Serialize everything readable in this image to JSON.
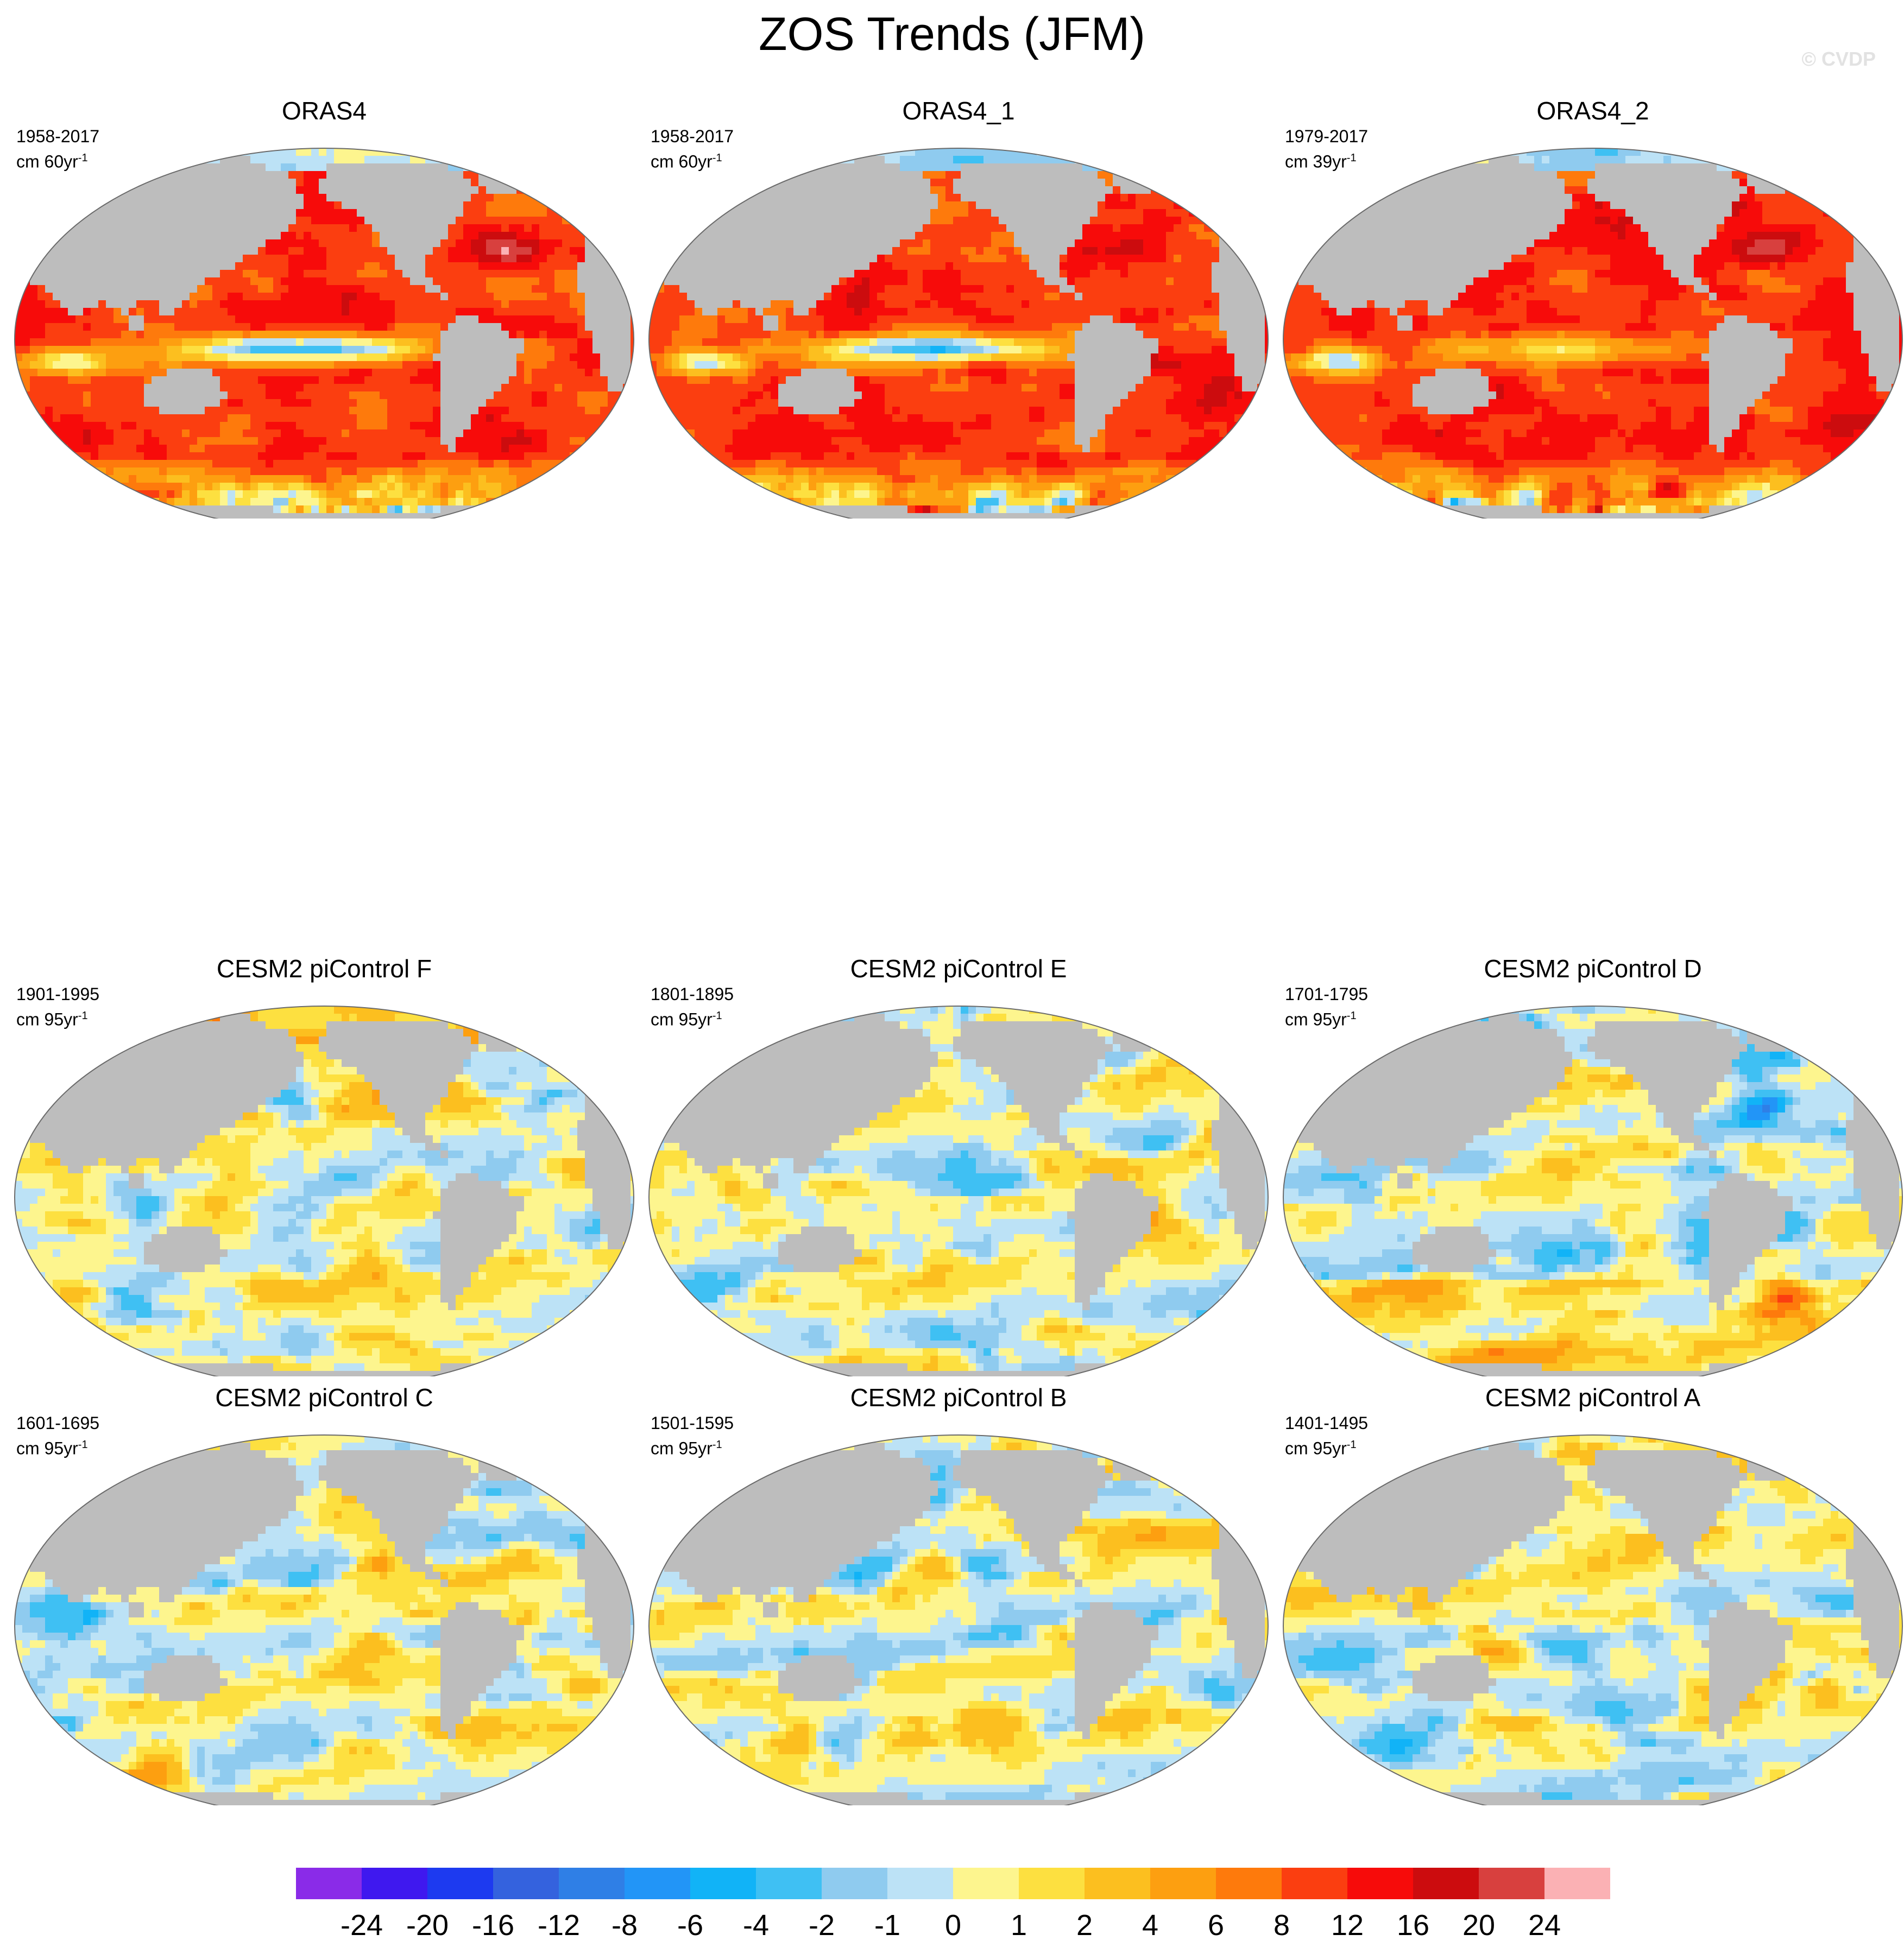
{
  "title": "ZOS Trends (JFM)",
  "watermark": "© CVDP",
  "panels": [
    {
      "title": "ORAS4",
      "period": "1958-2017",
      "units_prefix": "cm 60yr",
      "units_sup": "-1",
      "regime": "obs1"
    },
    {
      "title": "ORAS4_1",
      "period": "1958-2017",
      "units_prefix": "cm 60yr",
      "units_sup": "-1",
      "regime": "obs1"
    },
    {
      "title": "ORAS4_2",
      "period": "1979-2017",
      "units_prefix": "cm 39yr",
      "units_sup": "-1",
      "regime": "obs2"
    },
    {
      "title": "CESM2 piControl F",
      "period": "1901-1995",
      "units_prefix": "cm 95yr",
      "units_sup": "-1",
      "regime": "ctrlF"
    },
    {
      "title": "CESM2 piControl E",
      "period": "1801-1895",
      "units_prefix": "cm 95yr",
      "units_sup": "-1",
      "regime": "ctrlE"
    },
    {
      "title": "CESM2 piControl D",
      "period": "1701-1795",
      "units_prefix": "cm 95yr",
      "units_sup": "-1",
      "regime": "ctrlD"
    },
    {
      "title": "CESM2 piControl C",
      "period": "1601-1695",
      "units_prefix": "cm 95yr",
      "units_sup": "-1",
      "regime": "ctrlC"
    },
    {
      "title": "CESM2 piControl B",
      "period": "1501-1595",
      "units_prefix": "cm 95yr",
      "units_sup": "-1",
      "regime": "ctrlB"
    },
    {
      "title": "CESM2 piControl A",
      "period": "1401-1495",
      "units_prefix": "cm 95yr",
      "units_sup": "-1",
      "regime": "ctrlA"
    }
  ],
  "colorbar": {
    "labels": [
      "-24",
      "-20",
      "-16",
      "-12",
      "-8",
      "-6",
      "-4",
      "-2",
      "-1",
      "0",
      "1",
      "2",
      "4",
      "6",
      "8",
      "12",
      "16",
      "20",
      "24"
    ],
    "colors": [
      "#8a2be8",
      "#3f18ef",
      "#1d3af0",
      "#3462de",
      "#2f7fe6",
      "#2295f7",
      "#11b3f7",
      "#3fc0f3",
      "#8fcbef",
      "#bce2f6",
      "#fdf58e",
      "#fde040",
      "#fcbf1f",
      "#fd9f10",
      "#fe7a0c",
      "#fb3e10",
      "#f70b0a",
      "#cc0c0e",
      "#d8403e",
      "#fbb1b4"
    ]
  },
  "colors": {
    "land": "#bdbdbd",
    "coast": "#909090",
    "border": "#6a6a6a"
  }
}
